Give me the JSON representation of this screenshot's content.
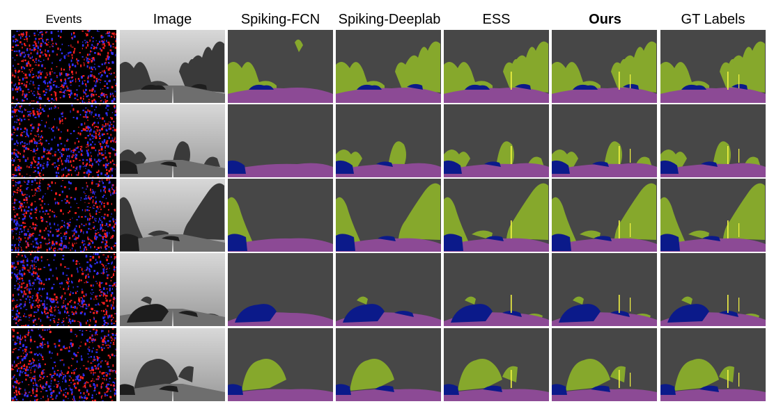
{
  "figure": {
    "columns": [
      {
        "key": "events",
        "label": "Events"
      },
      {
        "key": "image",
        "label": "Image"
      },
      {
        "key": "spiking_fcn",
        "label": "Spiking-FCN"
      },
      {
        "key": "spiking_deeplab",
        "label": "Spiking-Deeplab"
      },
      {
        "key": "ess",
        "label": "ESS"
      },
      {
        "key": "ours",
        "label": "Ours"
      },
      {
        "key": "gt",
        "label": "GT Labels"
      }
    ],
    "rows": 5
  },
  "colors": {
    "background": "#474747",
    "vegetation": "#86a82c",
    "vehicle": "#0b1a8a",
    "road": "#8c4a95",
    "pole": "#f5f542",
    "events_bg": "#000000",
    "events_pos": "#ff2020",
    "events_neg": "#3030ff"
  }
}
